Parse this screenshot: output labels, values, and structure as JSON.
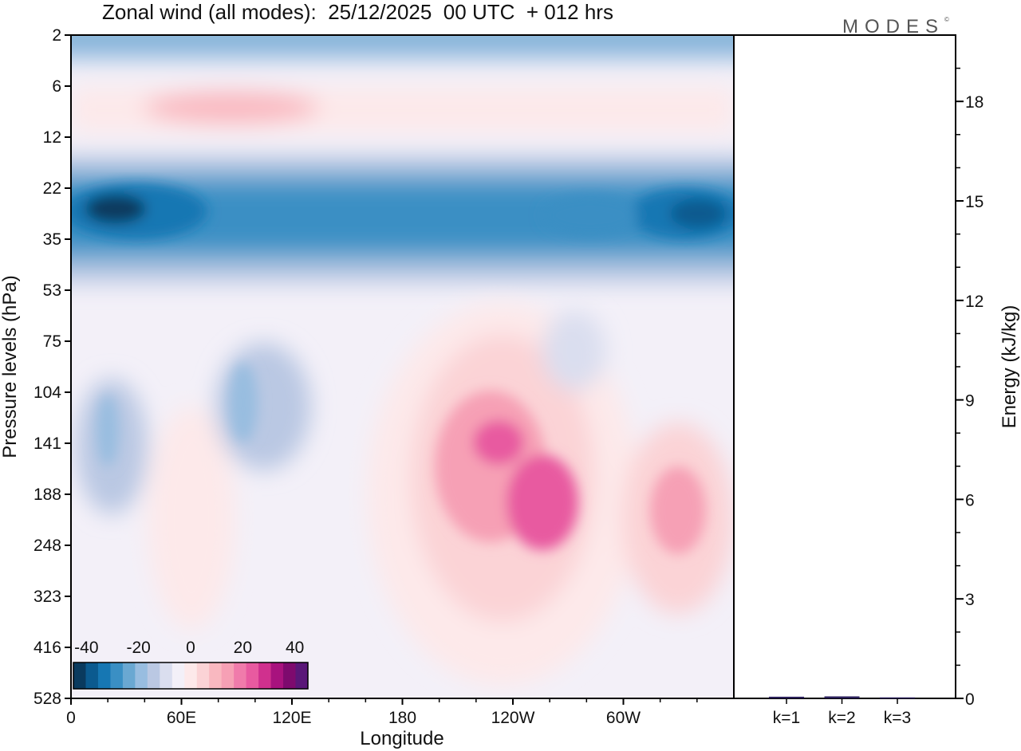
{
  "title": "Zonal wind (all modes):  25/12/2025  00 UTC  + 012 hrs",
  "logo": "MODES",
  "logo_mark": "©",
  "chart_data": [
    {
      "type": "heatmap",
      "name": "zonal-wind-section",
      "xlabel": "Longitude",
      "ylabel": "Pressure levels (hPa)",
      "x_ticks": [
        "0",
        "60E",
        "120E",
        "180",
        "120W",
        "60W"
      ],
      "y_ticks": [
        "2",
        "6",
        "12",
        "22",
        "35",
        "53",
        "75",
        "104",
        "141",
        "188",
        "248",
        "323",
        "416",
        "528"
      ],
      "colorbar": {
        "labels": [
          "-40",
          "-20",
          "0",
          "20",
          "40"
        ],
        "range": [
          -45,
          45
        ],
        "colors": [
          "#0a3a5e",
          "#0b5a8f",
          "#1677b3",
          "#3a8fc4",
          "#6aa8d2",
          "#98bde0",
          "#bac8e3",
          "#dadeef",
          "#f3f0f8",
          "#fde9ea",
          "#fbd3d6",
          "#f9b8c0",
          "#f6a0b5",
          "#f07bab",
          "#e85aa0",
          "#d0308e",
          "#a8127e",
          "#7e0a6e",
          "#5a1778"
        ]
      },
      "features": [
        {
          "label": "stratospheric easterly jet core",
          "lon_range": [
            0,
            360
          ],
          "level_range": [
            16,
            50
          ],
          "max_speed": -42
        },
        {
          "label": "tropospheric westerly maximum",
          "lon_range": [
            200,
            280
          ],
          "level_range": [
            120,
            260
          ],
          "max_speed": 30
        }
      ]
    },
    {
      "type": "bar",
      "name": "modal-energy",
      "ylabel": "Energy (kJ/kg)",
      "y_ticks": [
        "0",
        "3",
        "6",
        "9",
        "12",
        "15",
        "18"
      ],
      "ylim": [
        0,
        20
      ],
      "categories": [
        "k=1",
        "k=2",
        "k=3"
      ],
      "values": [
        0.05,
        0.06,
        0.03
      ]
    }
  ]
}
